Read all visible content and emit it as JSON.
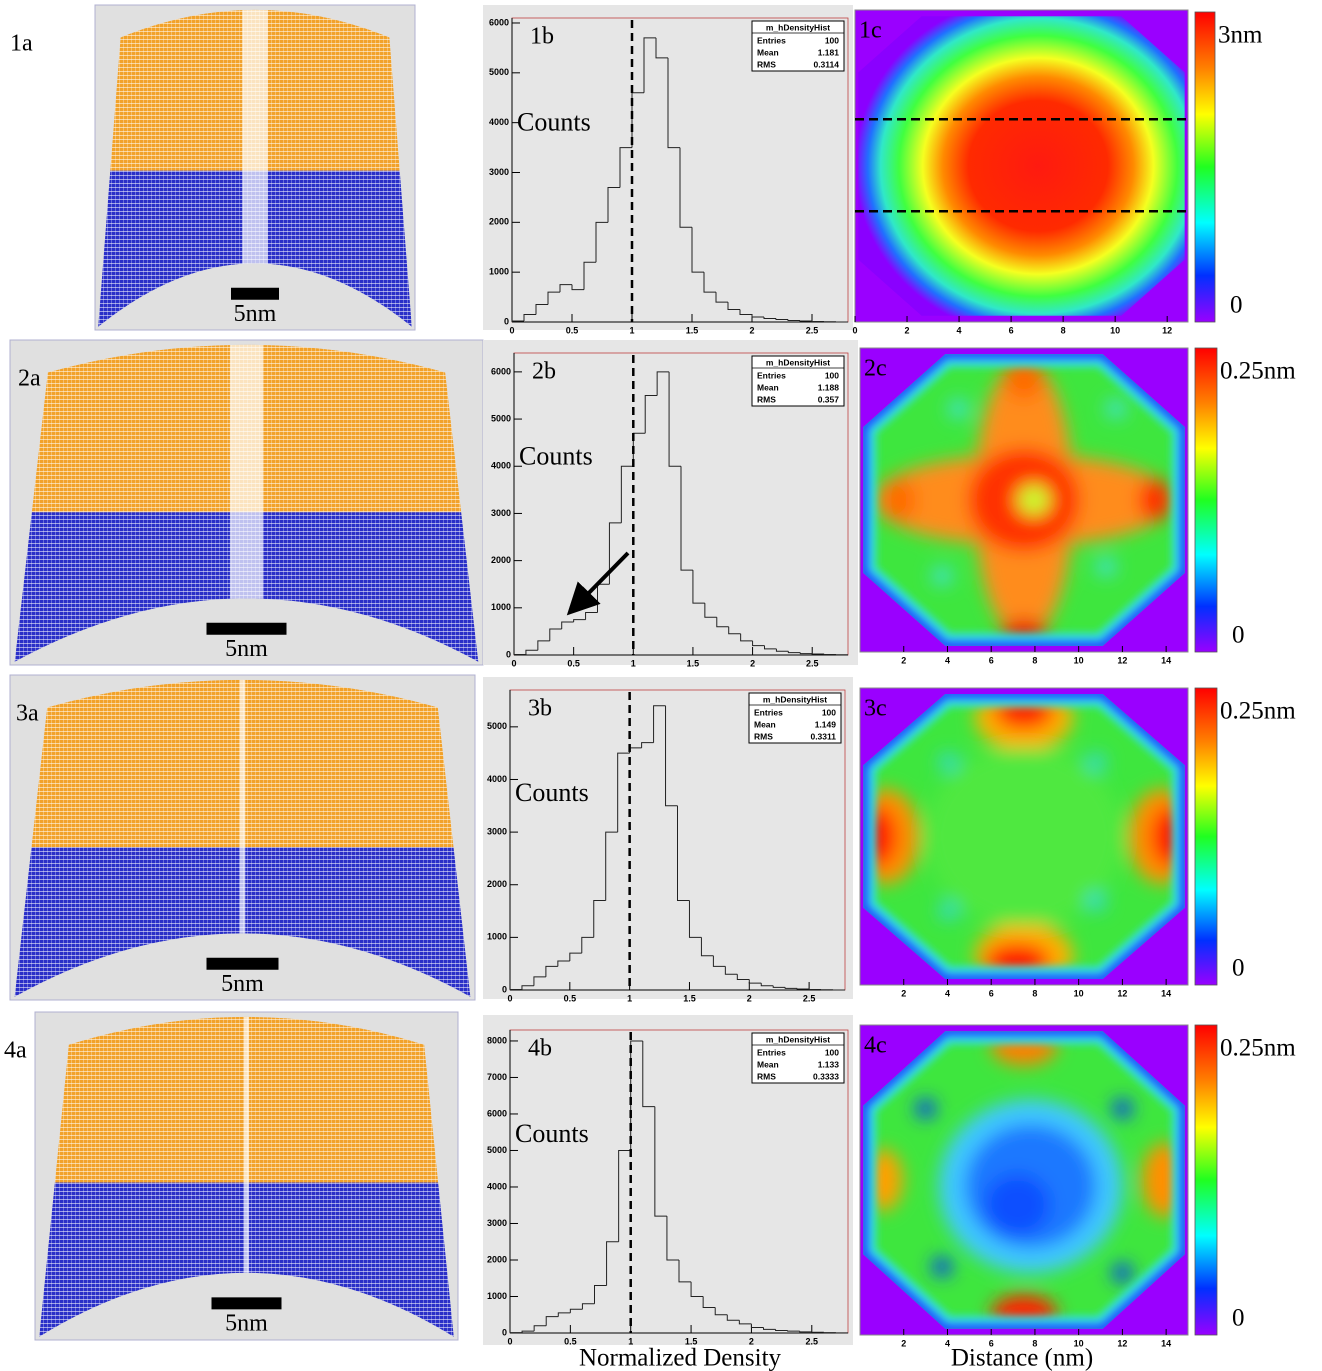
{
  "panels": [
    {
      "atom_map": {
        "label": "1a",
        "scale_bar": "5nm"
      },
      "histogram": {
        "label": "1b",
        "y_label": "Counts",
        "stats": {
          "title": "m_hDensityHist",
          "rows": [
            [
              "Entries",
              "100"
            ],
            [
              "Mean",
              "1.181"
            ],
            [
              "RMS",
              "0.3114"
            ]
          ]
        },
        "xlim": [
          0,
          2.8
        ],
        "ylim": [
          0,
          6100
        ],
        "xticks": [
          0,
          0.5,
          1,
          1.5,
          2,
          2.5
        ],
        "yticks": [
          0,
          1000,
          2000,
          3000,
          4000,
          5000,
          6000
        ],
        "reference_line": 1,
        "bins": [
          0,
          0.1,
          0.2,
          0.3,
          0.4,
          0.5,
          0.6,
          0.7,
          0.8,
          0.9,
          1,
          1.1,
          1.2,
          1.3,
          1.4,
          1.5,
          1.6,
          1.7,
          1.8,
          1.9,
          2,
          2.1,
          2.2,
          2.3,
          2.4,
          2.5,
          2.6,
          2.7,
          2.8
        ],
        "counts": [
          20,
          150,
          350,
          600,
          750,
          650,
          1200,
          2000,
          2700,
          3500,
          4600,
          5700,
          5300,
          3500,
          1900,
          1000,
          600,
          400,
          250,
          150,
          100,
          70,
          50,
          30,
          20,
          10,
          5,
          0
        ]
      },
      "heatmap": {
        "label": "1c",
        "xlim": [
          0,
          12.8
        ],
        "xticks": [
          0,
          2,
          4,
          6,
          8,
          10,
          12
        ],
        "scale_max": "3nm",
        "scale_min": "0"
      }
    },
    {
      "atom_map": {
        "label": "2a",
        "scale_bar": "5nm"
      },
      "histogram": {
        "label": "2b",
        "y_label": "Counts",
        "stats": {
          "title": "m_hDensityHist",
          "rows": [
            [
              "Entries",
              "100"
            ],
            [
              "Mean",
              "1.188"
            ],
            [
              "RMS",
              "0.357"
            ]
          ]
        },
        "xlim": [
          0,
          2.8
        ],
        "ylim": [
          0,
          6400
        ],
        "xticks": [
          0,
          0.5,
          1,
          1.5,
          2,
          2.5
        ],
        "yticks": [
          0,
          1000,
          2000,
          3000,
          4000,
          5000,
          6000
        ],
        "reference_line": 1,
        "bins": [
          0,
          0.1,
          0.2,
          0.3,
          0.4,
          0.5,
          0.6,
          0.7,
          0.8,
          0.9,
          1,
          1.1,
          1.2,
          1.3,
          1.4,
          1.5,
          1.6,
          1.7,
          1.8,
          1.9,
          2,
          2.1,
          2.2,
          2.3,
          2.4,
          2.5,
          2.6,
          2.7,
          2.8
        ],
        "counts": [
          10,
          100,
          300,
          550,
          700,
          750,
          900,
          1500,
          2800,
          4000,
          4700,
          5500,
          6000,
          4000,
          1800,
          1100,
          800,
          600,
          450,
          300,
          200,
          130,
          80,
          50,
          30,
          20,
          10,
          5
        ]
      },
      "heatmap": {
        "label": "2c",
        "xlim": [
          0,
          15
        ],
        "xticks": [
          2,
          4,
          6,
          8,
          10,
          12,
          14
        ],
        "scale_max": "0.25nm",
        "scale_min": "0"
      }
    },
    {
      "atom_map": {
        "label": "3a",
        "scale_bar": "5nm"
      },
      "histogram": {
        "label": "3b",
        "y_label": "Counts",
        "stats": {
          "title": "m_hDensityHist",
          "rows": [
            [
              "Entries",
              "100"
            ],
            [
              "Mean",
              "1.149"
            ],
            [
              "RMS",
              "0.3311"
            ]
          ]
        },
        "xlim": [
          0,
          2.8
        ],
        "ylim": [
          0,
          5700
        ],
        "xticks": [
          0,
          0.5,
          1,
          1.5,
          2,
          2.5
        ],
        "yticks": [
          0,
          1000,
          2000,
          3000,
          4000,
          5000
        ],
        "reference_line": 1,
        "bins": [
          0,
          0.1,
          0.2,
          0.3,
          0.4,
          0.5,
          0.6,
          0.7,
          0.8,
          0.9,
          1,
          1.1,
          1.2,
          1.3,
          1.4,
          1.5,
          1.6,
          1.7,
          1.8,
          1.9,
          2,
          2.1,
          2.2,
          2.3,
          2.4,
          2.5,
          2.6,
          2.7,
          2.8
        ],
        "counts": [
          10,
          80,
          250,
          450,
          550,
          700,
          1000,
          1700,
          3000,
          4500,
          4600,
          4700,
          5400,
          3500,
          1700,
          1000,
          650,
          450,
          300,
          200,
          130,
          80,
          50,
          30,
          20,
          10,
          5,
          0
        ]
      },
      "heatmap": {
        "label": "3c",
        "xlim": [
          0,
          15
        ],
        "xticks": [
          2,
          4,
          6,
          8,
          10,
          12,
          14
        ],
        "scale_max": "0.25nm",
        "scale_min": "0"
      }
    },
    {
      "atom_map": {
        "label": "4a",
        "scale_bar": "5nm"
      },
      "histogram": {
        "label": "4b",
        "y_label": "Counts",
        "stats": {
          "title": "m_hDensityHist",
          "rows": [
            [
              "Entries",
              "100"
            ],
            [
              "Mean",
              "1.133"
            ],
            [
              "RMS",
              "0.3333"
            ]
          ]
        },
        "xlim": [
          0,
          2.8
        ],
        "ylim": [
          0,
          8300
        ],
        "xticks": [
          0,
          0.5,
          1,
          1.5,
          2,
          2.5
        ],
        "yticks": [
          0,
          1000,
          2000,
          3000,
          4000,
          5000,
          6000,
          7000,
          8000
        ],
        "reference_line": 1,
        "bins": [
          0,
          0.1,
          0.2,
          0.3,
          0.4,
          0.5,
          0.6,
          0.7,
          0.8,
          0.9,
          1,
          1.1,
          1.2,
          1.3,
          1.4,
          1.5,
          1.6,
          1.7,
          1.8,
          1.9,
          2,
          2.1,
          2.2,
          2.3,
          2.4,
          2.5,
          2.6,
          2.7,
          2.8
        ],
        "counts": [
          10,
          50,
          200,
          450,
          550,
          650,
          800,
          1300,
          2500,
          5000,
          8000,
          6200,
          3200,
          2000,
          1400,
          1000,
          700,
          500,
          350,
          250,
          150,
          100,
          70,
          50,
          30,
          20,
          10,
          5
        ]
      },
      "heatmap": {
        "label": "4c",
        "xlim": [
          0,
          15
        ],
        "xticks": [
          2,
          4,
          6,
          8,
          10,
          12,
          14
        ],
        "scale_max": "0.25nm",
        "scale_min": "0"
      }
    }
  ],
  "x_title_histogram": "Normalized Density",
  "x_title_heatmap": "Distance (nm)"
}
